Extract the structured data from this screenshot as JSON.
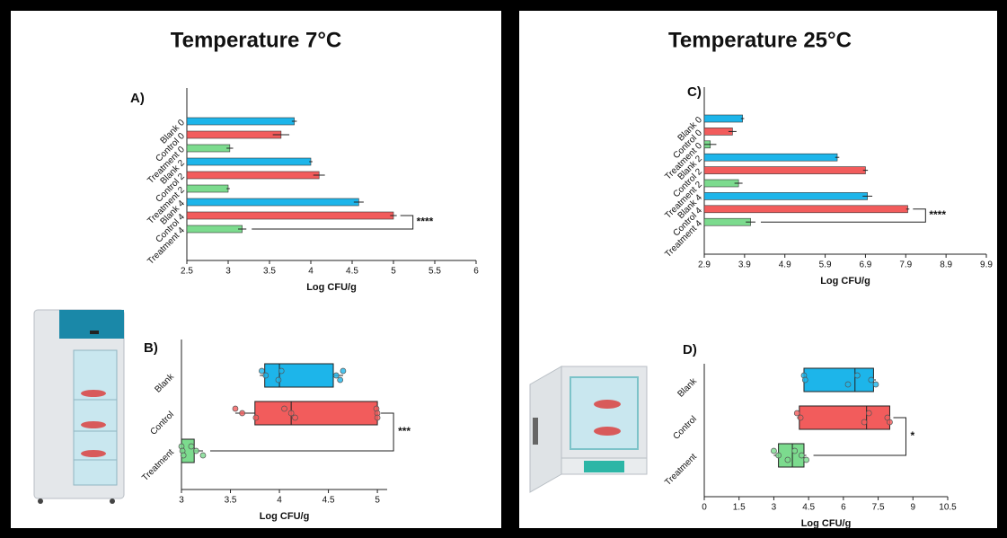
{
  "panels": [
    {
      "title": "Temperature 7°C"
    },
    {
      "title": "Temperature 25°C"
    }
  ],
  "chart_data": [
    {
      "type": "hbar",
      "label": "A)",
      "x_label": "Log CFU/g",
      "categories": [
        "Blank 0",
        "Control 0",
        "Treatment 0",
        "Blank 2",
        "Control 2",
        "Treatment 2",
        "Blank 4",
        "Control 4",
        "Treatment 4"
      ],
      "values": [
        3.8,
        3.64,
        3.02,
        4.0,
        4.1,
        3.0,
        4.58,
        5.0,
        3.17
      ],
      "errors": [
        0.03,
        0.1,
        0.04,
        0.02,
        0.07,
        0.02,
        0.06,
        0.04,
        0.05
      ],
      "colors": [
        "#1db5ea",
        "#f25c5c",
        "#7cdb8e",
        "#1db5ea",
        "#f25c5c",
        "#7cdb8e",
        "#1db5ea",
        "#f25c5c",
        "#7cdb8e"
      ],
      "xlim": [
        2.5,
        6
      ],
      "xticks": [
        2.5,
        3,
        3.5,
        4,
        4.5,
        5,
        5.5,
        6
      ],
      "annotation": "****"
    },
    {
      "type": "box",
      "label": "B)",
      "x_label": "Log CFU/g",
      "categories": [
        "Blank",
        "Control",
        "Treatment"
      ],
      "colors": [
        "#1db5ea",
        "#f25c5c",
        "#7cdb8e"
      ],
      "boxes": [
        {
          "min": 3.8,
          "q1": 3.85,
          "median": 4.0,
          "q3": 4.55,
          "max": 4.65,
          "points": [
            3.82,
            3.86,
            3.99,
            4.02,
            4.58,
            4.62,
            4.65
          ]
        },
        {
          "min": 3.55,
          "q1": 3.75,
          "median": 4.12,
          "q3": 5.0,
          "max": 5.0,
          "points": [
            3.55,
            3.62,
            3.76,
            4.05,
            4.12,
            4.16,
            4.99,
            5.0,
            5.0
          ]
        },
        {
          "min": 3.0,
          "q1": 3.0,
          "median": 3.0,
          "q3": 3.13,
          "max": 3.22,
          "points": [
            3.0,
            3.01,
            3.02,
            3.1,
            3.15,
            3.22
          ]
        }
      ],
      "xlim": [
        3,
        5.1
      ],
      "xticks": [
        3,
        3.5,
        4,
        4.5,
        5
      ],
      "annotation": "***"
    },
    {
      "type": "hbar",
      "label": "C)",
      "x_label": "Log CFU/g",
      "categories": [
        "Blank 0",
        "Control 0",
        "Treatment 0",
        "Blank 2",
        "Control 2",
        "Treatment 2",
        "Blank 4",
        "Control 4",
        "Treatment 4"
      ],
      "values": [
        3.85,
        3.6,
        3.05,
        6.2,
        6.9,
        3.75,
        6.95,
        7.95,
        4.05
      ],
      "errors": [
        0.04,
        0.1,
        0.15,
        0.05,
        0.06,
        0.1,
        0.12,
        0.04,
        0.12
      ],
      "colors": [
        "#1db5ea",
        "#f25c5c",
        "#7cdb8e",
        "#1db5ea",
        "#f25c5c",
        "#7cdb8e",
        "#1db5ea",
        "#f25c5c",
        "#7cdb8e"
      ],
      "xlim": [
        2.9,
        9.9
      ],
      "xticks": [
        2.9,
        3.9,
        4.9,
        5.9,
        6.9,
        7.9,
        8.9,
        9.9
      ],
      "annotation": "****"
    },
    {
      "type": "box",
      "label": "D)",
      "x_label": "Log CFU/g",
      "categories": [
        "Blank",
        "Control",
        "Treatment"
      ],
      "colors": [
        "#1db5ea",
        "#f25c5c",
        "#7cdb8e"
      ],
      "boxes": [
        {
          "min": 4.3,
          "q1": 4.3,
          "median": 6.5,
          "q3": 7.3,
          "max": 7.4,
          "points": [
            4.3,
            4.35,
            6.2,
            6.6,
            7.2,
            7.4
          ]
        },
        {
          "min": 4.0,
          "q1": 4.1,
          "median": 7.0,
          "q3": 8.0,
          "max": 8.0,
          "points": [
            4.0,
            4.15,
            6.9,
            7.1,
            7.9,
            8.0
          ]
        },
        {
          "min": 3.0,
          "q1": 3.2,
          "median": 3.8,
          "q3": 4.3,
          "max": 4.4,
          "points": [
            3.0,
            3.2,
            3.6,
            3.9,
            4.2,
            4.4
          ]
        }
      ],
      "xlim": [
        0,
        10.5
      ],
      "xticks": [
        0,
        1.5,
        3,
        4.5,
        6,
        7.5,
        9,
        10.5
      ],
      "annotation": "*"
    }
  ]
}
